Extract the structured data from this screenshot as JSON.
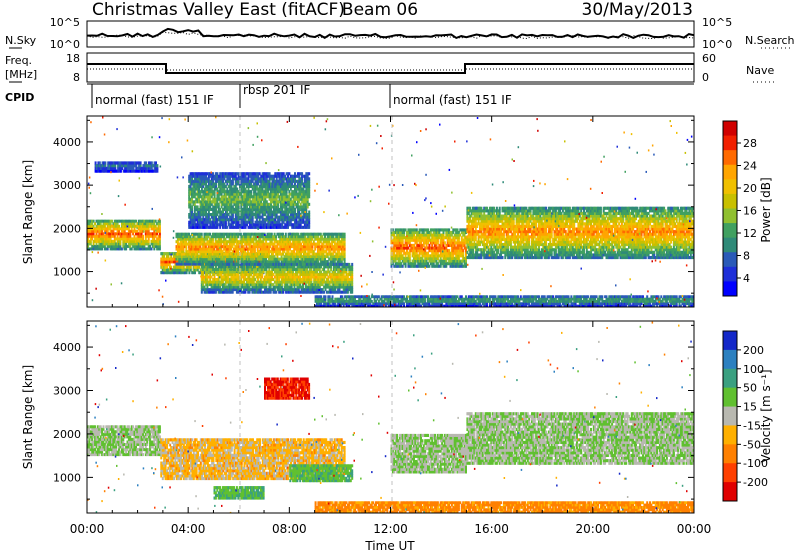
{
  "header": {
    "title": "Christmas Valley East (fitACF)",
    "beam": "Beam 06",
    "date": "30/May/2013"
  },
  "top_panel": {
    "left_label": "N.Sky",
    "left_ticks": [
      "10^5",
      "10^0"
    ],
    "right_label": "N.Search",
    "right_ticks": [
      "10^5",
      "10^0"
    ]
  },
  "freq_panel": {
    "left_label_1": "Freq.",
    "left_label_2": "[MHz]",
    "left_ticks": [
      "18",
      "8"
    ],
    "right_label": "Nave",
    "right_ticks": [
      "60",
      "0"
    ]
  },
  "cpid": {
    "label": "CPID",
    "segments": [
      {
        "label": "normal (fast) 151 IF",
        "start_hour": 0,
        "end_hour": 6
      },
      {
        "label": "rbsp 201 IF",
        "start_hour": 6,
        "end_hour": 12
      },
      {
        "label": "normal (fast) 151 IF",
        "start_hour": 12,
        "end_hour": 24
      }
    ]
  },
  "colorbars": {
    "power": {
      "label": "Power [dB]",
      "ticks": [
        "28",
        "24",
        "20",
        "16",
        "12",
        "8",
        "4"
      ],
      "colors": [
        "#d00000",
        "#f22000",
        "#ff6a00",
        "#ffa500",
        "#f0c000",
        "#c8c000",
        "#90c030",
        "#40a060",
        "#2f8a78",
        "#2a5ab8",
        "#1e2fd8",
        "#0000ff"
      ]
    },
    "velocity": {
      "label": "Velocity [m s⁻¹]",
      "ticks": [
        "200",
        "100",
        "50",
        "15",
        "-15",
        "-50",
        "-100",
        "-200"
      ],
      "colors": [
        "#1428c8",
        "#2c80c0",
        "#3aa080",
        "#60c030",
        "#b8b8b0",
        "#ffb000",
        "#ff8000",
        "#ff4000",
        "#e00000"
      ]
    }
  },
  "axes": {
    "xlabel": "Time UT",
    "ylabel": "Slant Range [km]",
    "x_ticks": [
      "00:00",
      "04:00",
      "08:00",
      "12:00",
      "16:00",
      "20:00",
      "00:00"
    ],
    "y_ticks": [
      "1000",
      "2000",
      "3000",
      "4000"
    ]
  },
  "chart_data": [
    {
      "type": "heatmap",
      "title": "",
      "xlabel": "Time UT",
      "ylabel": "Slant Range [km]",
      "xlim": [
        0,
        24
      ],
      "ylim": [
        180,
        4600
      ],
      "colorbar": "Power [dB]",
      "echo_bands": [
        {
          "start_hour": 0.0,
          "end_hour": 2.9,
          "range_km": [
            1500,
            2200
          ],
          "peak_power_db": 26
        },
        {
          "start_hour": 0.3,
          "end_hour": 2.8,
          "range_km": [
            3300,
            3550
          ],
          "peak_power_db": 8
        },
        {
          "start_hour": 2.9,
          "end_hour": 7.0,
          "range_km": [
            950,
            1450
          ],
          "peak_power_db": 26
        },
        {
          "start_hour": 3.5,
          "end_hour": 10.2,
          "range_km": [
            1150,
            1900
          ],
          "peak_power_db": 24
        },
        {
          "start_hour": 4.5,
          "end_hour": 10.5,
          "range_km": [
            500,
            1200
          ],
          "peak_power_db": 20
        },
        {
          "start_hour": 4.0,
          "end_hour": 8.8,
          "range_km": [
            2000,
            3300
          ],
          "peak_power_db": 14
        },
        {
          "start_hour": 12.0,
          "end_hour": 15.0,
          "range_km": [
            1100,
            2000
          ],
          "peak_power_db": 26
        },
        {
          "start_hour": 15.0,
          "end_hour": 24.0,
          "range_km": [
            1300,
            2500
          ],
          "peak_power_db": 24
        },
        {
          "start_hour": 9.0,
          "end_hour": 24.0,
          "range_km": [
            180,
            450
          ],
          "peak_power_db": 12
        }
      ]
    },
    {
      "type": "heatmap",
      "title": "",
      "xlabel": "Time UT",
      "ylabel": "Slant Range [km]",
      "xlim": [
        0,
        24
      ],
      "ylim": [
        180,
        4600
      ],
      "colorbar": "Velocity [m s⁻¹]",
      "echo_bands": [
        {
          "start_hour": 0.0,
          "end_hour": 2.9,
          "range_km": [
            1500,
            2200
          ],
          "velocity_ms": 0
        },
        {
          "start_hour": 2.9,
          "end_hour": 10.2,
          "range_km": [
            950,
            1900
          ],
          "velocity_ms": -20
        },
        {
          "start_hour": 5.0,
          "end_hour": 7.0,
          "range_km": [
            500,
            800
          ],
          "velocity_ms": 30
        },
        {
          "start_hour": 8.0,
          "end_hour": 10.5,
          "range_km": [
            900,
            1300
          ],
          "velocity_ms": 25
        },
        {
          "start_hour": 7.0,
          "end_hour": 8.8,
          "range_km": [
            2800,
            3300
          ],
          "velocity_ms": -150
        },
        {
          "start_hour": 12.0,
          "end_hour": 15.0,
          "range_km": [
            1100,
            2000
          ],
          "velocity_ms": 0
        },
        {
          "start_hour": 15.0,
          "end_hour": 24.0,
          "range_km": [
            1300,
            2500
          ],
          "velocity_ms": 0
        },
        {
          "start_hour": 9.0,
          "end_hour": 24.0,
          "range_km": [
            180,
            450
          ],
          "velocity_ms": -40
        }
      ]
    }
  ]
}
